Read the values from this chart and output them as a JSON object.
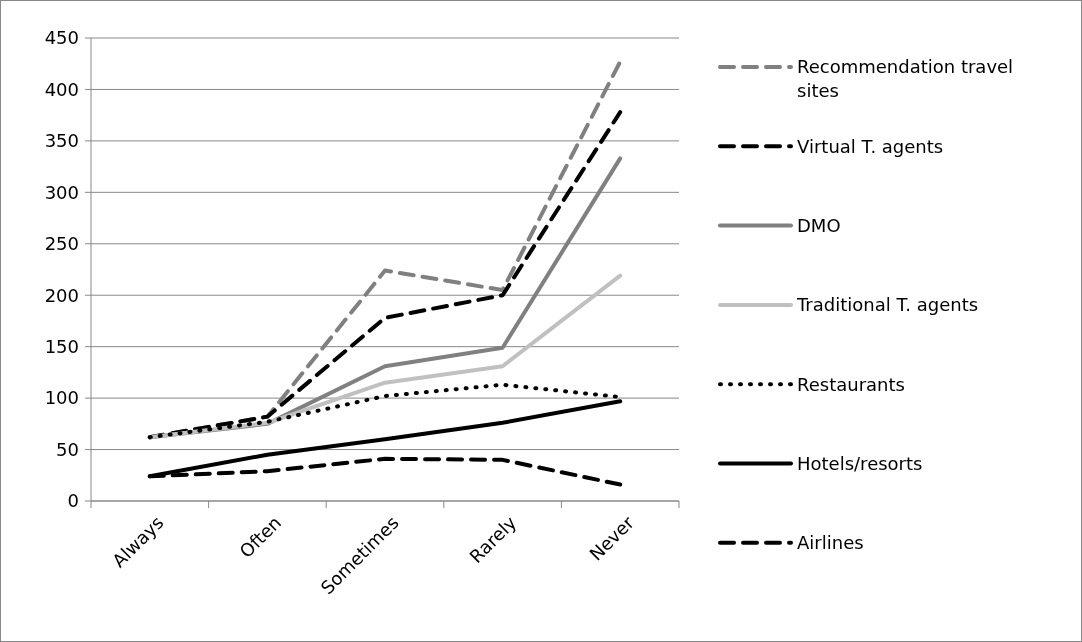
{
  "chart_data": {
    "type": "line",
    "categories": [
      "Always",
      "Often",
      "Sometimes",
      "Rarely",
      "Never"
    ],
    "ylim": [
      0,
      450
    ],
    "yticks": [
      0,
      50,
      100,
      150,
      200,
      250,
      300,
      350,
      400,
      450
    ],
    "grid": "y",
    "legend": "right",
    "series": [
      {
        "name": "Recommendation travel sites",
        "color": "#808080",
        "line_style": "dashed",
        "values": [
          62,
          82,
          224,
          205,
          427
        ]
      },
      {
        "name": "Virtual T. agents",
        "color": "#000000",
        "line_style": "dashed",
        "values": [
          62,
          82,
          178,
          200,
          378
        ]
      },
      {
        "name": "DMO",
        "color": "#808080",
        "line_style": "solid",
        "values": [
          62,
          75,
          131,
          149,
          333
        ]
      },
      {
        "name": "Traditional  T. agents",
        "color": "#c0c0c0",
        "line_style": "solid",
        "values": [
          62,
          76,
          115,
          131,
          219
        ]
      },
      {
        "name": "Restaurants",
        "color": "#000000",
        "line_style": "dotted",
        "values": [
          62,
          77,
          102,
          113,
          101
        ]
      },
      {
        "name": "Hotels/resorts",
        "color": "#000000",
        "line_style": "solid",
        "values": [
          24,
          45,
          60,
          76,
          97
        ]
      },
      {
        "name": "Airlines",
        "color": "#000000",
        "line_style": "dashed",
        "values": [
          24,
          29,
          41,
          40,
          16
        ]
      }
    ]
  }
}
